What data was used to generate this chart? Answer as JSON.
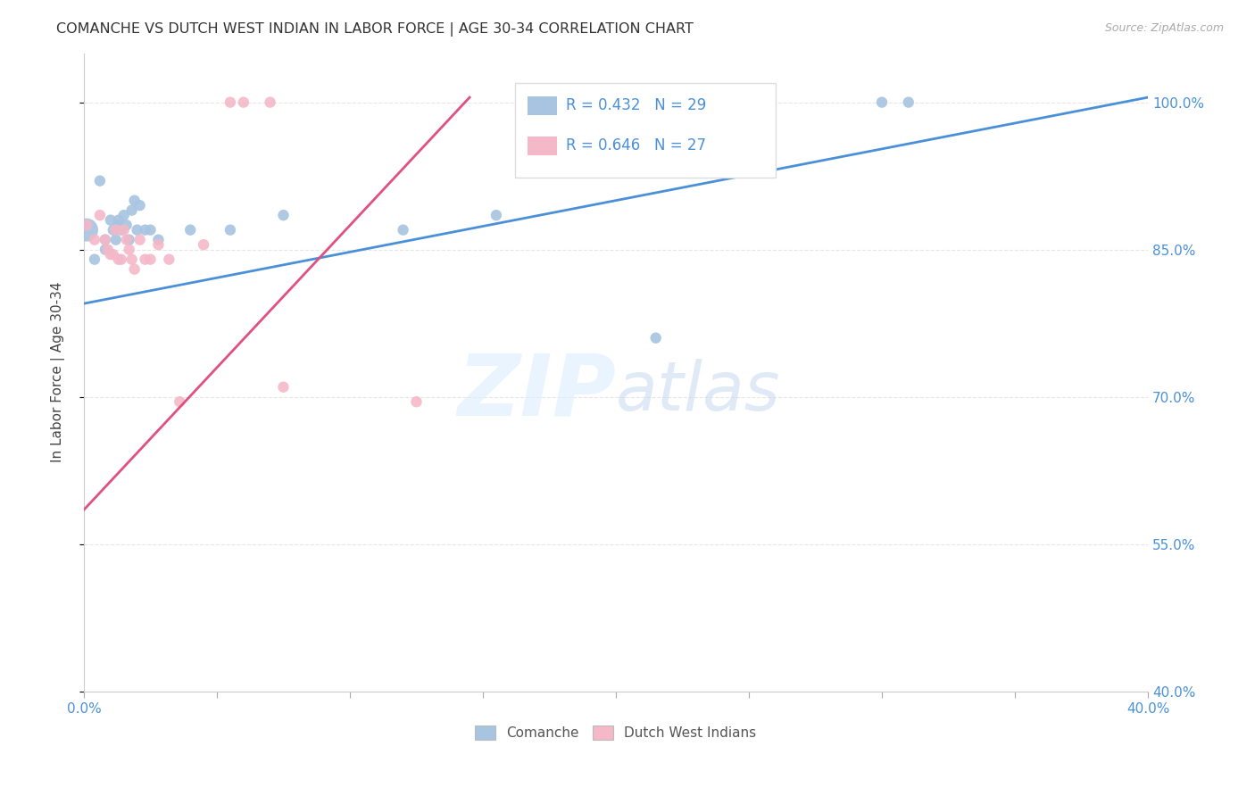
{
  "title": "COMANCHE VS DUTCH WEST INDIAN IN LABOR FORCE | AGE 30-34 CORRELATION CHART",
  "source": "Source: ZipAtlas.com",
  "ylabel": "In Labor Force | Age 30-34",
  "xlim": [
    0.0,
    0.4
  ],
  "ylim": [
    0.4,
    1.05
  ],
  "xticks": [
    0.0,
    0.05,
    0.1,
    0.15,
    0.2,
    0.25,
    0.3,
    0.35,
    0.4
  ],
  "yticks": [
    0.4,
    0.55,
    0.7,
    0.85,
    1.0
  ],
  "yticklabels": [
    "40.0%",
    "55.0%",
    "70.0%",
    "85.0%",
    "100.0%"
  ],
  "comanche_x": [
    0.001,
    0.004,
    0.006,
    0.008,
    0.008,
    0.01,
    0.011,
    0.012,
    0.013,
    0.013,
    0.014,
    0.015,
    0.016,
    0.017,
    0.018,
    0.019,
    0.02,
    0.021,
    0.023,
    0.025,
    0.028,
    0.04,
    0.055,
    0.075,
    0.12,
    0.155,
    0.215,
    0.3,
    0.31
  ],
  "comanche_y": [
    0.87,
    0.84,
    0.92,
    0.86,
    0.85,
    0.88,
    0.87,
    0.86,
    0.88,
    0.875,
    0.87,
    0.885,
    0.875,
    0.86,
    0.89,
    0.9,
    0.87,
    0.895,
    0.87,
    0.87,
    0.86,
    0.87,
    0.87,
    0.885,
    0.87,
    0.885,
    0.76,
    1.0,
    1.0
  ],
  "comanche_sizes": [
    350,
    80,
    80,
    80,
    80,
    80,
    80,
    80,
    80,
    80,
    80,
    80,
    80,
    80,
    80,
    80,
    80,
    80,
    80,
    80,
    80,
    80,
    80,
    80,
    80,
    80,
    80,
    80,
    80
  ],
  "dutch_x": [
    0.001,
    0.004,
    0.006,
    0.008,
    0.009,
    0.01,
    0.011,
    0.012,
    0.013,
    0.014,
    0.015,
    0.016,
    0.017,
    0.018,
    0.019,
    0.021,
    0.023,
    0.025,
    0.028,
    0.032,
    0.036,
    0.045,
    0.055,
    0.06,
    0.07,
    0.075,
    0.125
  ],
  "dutch_y": [
    0.875,
    0.86,
    0.885,
    0.86,
    0.85,
    0.845,
    0.845,
    0.87,
    0.84,
    0.84,
    0.87,
    0.86,
    0.85,
    0.84,
    0.83,
    0.86,
    0.84,
    0.84,
    0.855,
    0.84,
    0.695,
    0.855,
    1.0,
    1.0,
    1.0,
    0.71,
    0.695
  ],
  "dutch_sizes": [
    80,
    80,
    80,
    80,
    80,
    80,
    80,
    80,
    80,
    80,
    80,
    80,
    80,
    80,
    80,
    80,
    80,
    80,
    80,
    80,
    80,
    80,
    80,
    80,
    80,
    80,
    80
  ],
  "comanche_color": "#a8c4e0",
  "dutch_color": "#f4b8c8",
  "comanche_line_color": "#4a90d9",
  "dutch_line_color": "#e05080",
  "legend_r_color": "#4a90d9",
  "legend_n_color": "#1a1a9a",
  "legend_r_comanche": "R = 0.432",
  "legend_n_comanche": "N = 29",
  "legend_r_dutch": "R = 0.646",
  "legend_n_dutch": "N = 27",
  "watermark_zip": "ZIP",
  "watermark_atlas": "atlas",
  "grid_color": "#e0e0e0"
}
